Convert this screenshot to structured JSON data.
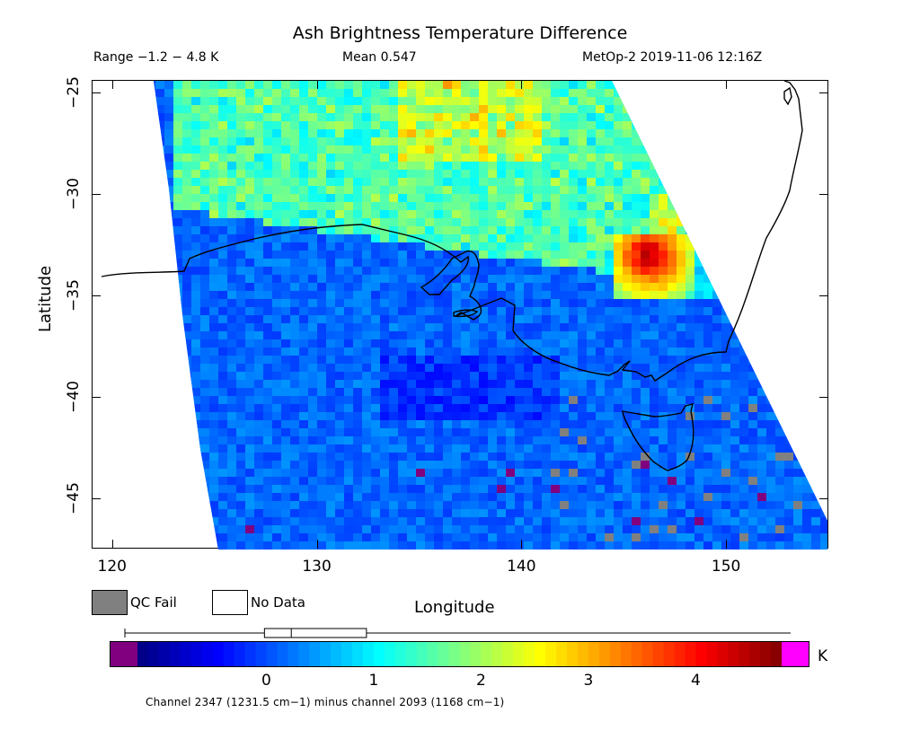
{
  "header": {
    "title": "Ash Brightness Temperature Difference",
    "range": "Range −1.2 − 4.8 K",
    "mean": "Mean 0.547",
    "satellite": "MetOp-2 2019-11-06 12:16Z"
  },
  "axes": {
    "xlabel": "Longitude",
    "ylabel": "Latitude",
    "xlim": [
      119,
      155
    ],
    "ylim": [
      -47.5,
      -24.4
    ],
    "xticks": [
      120,
      130,
      140,
      150
    ],
    "yticks": [
      -25,
      -30,
      -35,
      -40,
      -45
    ],
    "xtick_labels": [
      "120",
      "130",
      "140",
      "150"
    ],
    "ytick_labels": [
      "−25",
      "−30",
      "−35",
      "−40",
      "−45"
    ]
  },
  "legend": {
    "qc_fail": "QC Fail",
    "no_data": "No Data",
    "qc_fail_color": "#808080",
    "no_data_color": "#ffffff"
  },
  "colorbar": {
    "unit": "K",
    "min": -1.2,
    "max": 4.8,
    "labels": [
      "0",
      "1",
      "2",
      "3",
      "4"
    ],
    "label_values": [
      0,
      1,
      2,
      3,
      4
    ],
    "under_color": "#800080",
    "over_color": "#ff00ff",
    "boxplot": {
      "whisker_low": -1.2,
      "q1": 0.1,
      "median": 0.35,
      "q3": 1.05,
      "whisker_high": 4.8
    }
  },
  "footnote": "Channel 2347 (1231.5 cm−1) minus channel 2093 (1168 cm−1)",
  "map": {
    "region": "South-eastern Australia",
    "features": [
      "coastline",
      "Tasmania",
      "Spencer Gulf",
      "Gulf St Vincent",
      "Kangaroo Island"
    ],
    "hotspot": {
      "name": "ash plume",
      "lon": [
        144.5,
        148.5
      ],
      "lat": [
        -35,
        -32
      ],
      "max_value": 4.8
    }
  }
}
